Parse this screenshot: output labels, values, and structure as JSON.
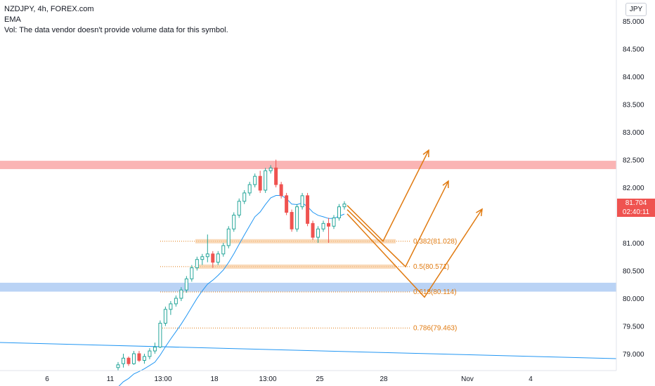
{
  "legend": {
    "symbol": "NZDJPY, 4h, FOREX.com",
    "indicator": "EMA",
    "volume_note": "Vol: The data vendor doesn't provide volume data for this symbol."
  },
  "currency": "JPY",
  "last_price": {
    "price": "81.704",
    "countdown": "02:40:11",
    "color": "#ef5350"
  },
  "colors": {
    "up": "#26a69a",
    "down": "#ef5350",
    "ema": "#2196f3",
    "fib": "#e07a10",
    "resistance": "#f9a7a7",
    "support": "#aecbf3",
    "trendline": "#2196f3"
  },
  "chart_data": {
    "type": "candlestick",
    "ylim": [
      78.7,
      85.2
    ],
    "yticks": [
      "85.000",
      "84.500",
      "84.000",
      "83.500",
      "83.000",
      "82.500",
      "82.000",
      "81.500",
      "81.000",
      "80.500",
      "80.000",
      "79.500",
      "79.000"
    ],
    "xticks": [
      "6",
      "11",
      "13:00",
      "18",
      "13:00",
      "25",
      "28",
      "Nov",
      "4"
    ],
    "resistance_zone": [
      82.33,
      82.48
    ],
    "support_zone": [
      80.12,
      80.28
    ],
    "fib_levels": [
      {
        "label": "0.382(81.028)",
        "value": 81.028
      },
      {
        "label": "0.5(80.571)",
        "value": 80.571
      },
      {
        "label": "0.618(80.114)",
        "value": 80.114
      },
      {
        "label": "0.786(79.463)",
        "value": 79.463
      }
    ],
    "candles": [
      [
        78.75,
        78.85,
        78.7,
        78.8
      ],
      [
        78.82,
        79.0,
        78.75,
        78.92
      ],
      [
        78.92,
        78.95,
        78.78,
        78.82
      ],
      [
        78.82,
        79.05,
        78.8,
        79.0
      ],
      [
        79.0,
        79.05,
        78.85,
        78.88
      ],
      [
        78.88,
        79.0,
        78.82,
        78.95
      ],
      [
        78.95,
        79.1,
        78.9,
        79.05
      ],
      [
        79.05,
        79.2,
        79.0,
        79.12
      ],
      [
        79.12,
        79.6,
        79.1,
        79.55
      ],
      [
        79.55,
        79.85,
        79.5,
        79.8
      ],
      [
        79.8,
        79.95,
        79.7,
        79.9
      ],
      [
        79.9,
        80.05,
        79.85,
        80.0
      ],
      [
        80.0,
        80.2,
        79.95,
        80.15
      ],
      [
        80.15,
        80.4,
        80.1,
        80.35
      ],
      [
        80.35,
        80.6,
        80.3,
        80.55
      ],
      [
        80.55,
        80.75,
        80.5,
        80.7
      ],
      [
        80.7,
        80.8,
        80.6,
        80.75
      ],
      [
        80.75,
        81.15,
        80.65,
        80.8
      ],
      [
        80.8,
        80.85,
        80.55,
        80.65
      ],
      [
        80.65,
        80.85,
        80.6,
        80.8
      ],
      [
        80.8,
        81.0,
        80.75,
        80.95
      ],
      [
        80.95,
        81.3,
        80.9,
        81.25
      ],
      [
        81.25,
        81.55,
        81.2,
        81.5
      ],
      [
        81.5,
        81.8,
        81.45,
        81.75
      ],
      [
        81.75,
        81.95,
        81.7,
        81.9
      ],
      [
        81.9,
        82.1,
        81.85,
        82.05
      ],
      [
        82.05,
        82.25,
        82.0,
        82.2
      ],
      [
        82.2,
        82.3,
        81.9,
        81.95
      ],
      [
        81.95,
        82.35,
        81.9,
        82.3
      ],
      [
        82.3,
        82.4,
        82.25,
        82.35
      ],
      [
        82.35,
        82.5,
        82.0,
        82.05
      ],
      [
        82.05,
        82.1,
        81.8,
        81.85
      ],
      [
        81.85,
        81.9,
        81.5,
        81.55
      ],
      [
        81.55,
        81.6,
        81.2,
        81.25
      ],
      [
        81.25,
        81.7,
        81.2,
        81.65
      ],
      [
        81.65,
        81.9,
        81.6,
        81.85
      ],
      [
        81.85,
        81.9,
        81.3,
        81.35
      ],
      [
        81.35,
        81.4,
        81.05,
        81.1
      ],
      [
        81.1,
        81.3,
        81.0,
        81.25
      ],
      [
        81.25,
        81.4,
        81.2,
        81.35
      ],
      [
        81.35,
        81.45,
        81.0,
        81.3
      ],
      [
        81.3,
        81.5,
        81.25,
        81.45
      ],
      [
        81.45,
        81.7,
        81.4,
        81.65
      ],
      [
        81.65,
        81.75,
        81.6,
        81.7
      ]
    ]
  }
}
